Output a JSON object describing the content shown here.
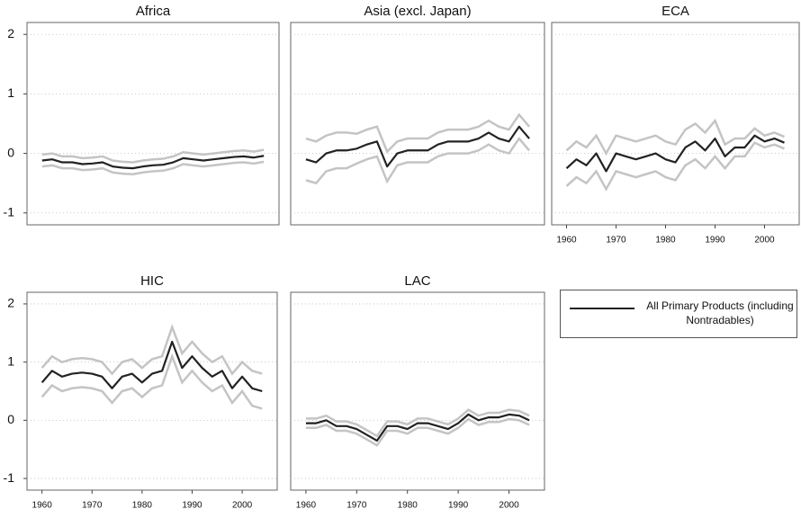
{
  "chart_data": [
    {
      "type": "line",
      "title": "Africa",
      "xlim": [
        1957,
        2007
      ],
      "ylim": [
        -1.2,
        2.2
      ],
      "xticks": [
        1960,
        1970,
        1980,
        1990,
        2000
      ],
      "yticks": [
        -1,
        0,
        1,
        2
      ],
      "grid": true,
      "show_xticklabels": false,
      "show_yticklabels": true,
      "legend": "right",
      "x": [
        1960,
        1962,
        1964,
        1966,
        1968,
        1970,
        1972,
        1974,
        1976,
        1978,
        1980,
        1982,
        1984,
        1986,
        1988,
        1990,
        1992,
        1994,
        1996,
        1998,
        2000,
        2002,
        2004
      ],
      "series": [
        {
          "name": "All Primary Products (including Nontradables)",
          "color": "#222222",
          "band_color": "#c4c4c4",
          "values": [
            -0.12,
            -0.1,
            -0.15,
            -0.15,
            -0.18,
            -0.17,
            -0.15,
            -0.22,
            -0.24,
            -0.25,
            -0.22,
            -0.2,
            -0.19,
            -0.15,
            -0.08,
            -0.1,
            -0.12,
            -0.1,
            -0.08,
            -0.06,
            -0.05,
            -0.07,
            -0.04
          ],
          "errors": [
            0.1,
            0.1,
            0.1,
            0.1,
            0.1,
            0.1,
            0.1,
            0.1,
            0.1,
            0.1,
            0.1,
            0.1,
            0.1,
            0.1,
            0.1,
            0.1,
            0.1,
            0.1,
            0.1,
            0.1,
            0.1,
            0.1,
            0.1
          ]
        }
      ]
    },
    {
      "type": "line",
      "title": "Asia (excl. Japan)",
      "xlim": [
        1957,
        2007
      ],
      "ylim": [
        -1.2,
        2.2
      ],
      "xticks": [
        1960,
        1970,
        1980,
        1990,
        2000
      ],
      "yticks": [
        -1,
        0,
        1,
        2
      ],
      "grid": true,
      "show_xticklabels": false,
      "show_yticklabels": false,
      "x": [
        1960,
        1962,
        1964,
        1966,
        1968,
        1970,
        1972,
        1974,
        1976,
        1978,
        1980,
        1982,
        1984,
        1986,
        1988,
        1990,
        1992,
        1994,
        1996,
        1998,
        2000,
        2002,
        2004
      ],
      "series": [
        {
          "color": "#222222",
          "band_color": "#c4c4c4",
          "values": [
            -0.1,
            -0.15,
            0.0,
            0.05,
            0.05,
            0.08,
            0.15,
            0.2,
            -0.22,
            0.0,
            0.05,
            0.05,
            0.05,
            0.15,
            0.2,
            0.2,
            0.2,
            0.25,
            0.35,
            0.25,
            0.2,
            0.45,
            0.25
          ],
          "errors": [
            0.35,
            0.35,
            0.3,
            0.3,
            0.3,
            0.25,
            0.25,
            0.25,
            0.25,
            0.2,
            0.2,
            0.2,
            0.2,
            0.2,
            0.2,
            0.2,
            0.2,
            0.2,
            0.2,
            0.2,
            0.2,
            0.2,
            0.2
          ]
        }
      ]
    },
    {
      "type": "line",
      "title": "ECA",
      "xlim": [
        1957,
        2007
      ],
      "ylim": [
        -1.2,
        2.2
      ],
      "xticks": [
        1960,
        1970,
        1980,
        1990,
        2000
      ],
      "yticks": [
        -1,
        0,
        1,
        2
      ],
      "grid": true,
      "show_xticklabels": true,
      "show_yticklabels": false,
      "x": [
        1960,
        1962,
        1964,
        1966,
        1968,
        1970,
        1972,
        1974,
        1976,
        1978,
        1980,
        1982,
        1984,
        1986,
        1988,
        1990,
        1992,
        1994,
        1996,
        1998,
        2000,
        2002,
        2004
      ],
      "series": [
        {
          "color": "#222222",
          "band_color": "#c4c4c4",
          "values": [
            -0.25,
            -0.1,
            -0.2,
            0.0,
            -0.3,
            0.0,
            -0.05,
            -0.1,
            -0.05,
            0.0,
            -0.1,
            -0.15,
            0.1,
            0.2,
            0.05,
            0.25,
            -0.05,
            0.1,
            0.1,
            0.3,
            0.2,
            0.25,
            0.18
          ],
          "errors": [
            0.3,
            0.3,
            0.3,
            0.3,
            0.3,
            0.3,
            0.3,
            0.3,
            0.3,
            0.3,
            0.3,
            0.3,
            0.3,
            0.3,
            0.3,
            0.3,
            0.2,
            0.15,
            0.15,
            0.12,
            0.1,
            0.1,
            0.1
          ]
        }
      ]
    },
    {
      "type": "line",
      "title": "HIC",
      "xlim": [
        1957,
        2007
      ],
      "ylim": [
        -1.2,
        2.2
      ],
      "xticks": [
        1960,
        1970,
        1980,
        1990,
        2000
      ],
      "yticks": [
        -1,
        0,
        1,
        2
      ],
      "grid": true,
      "show_xticklabels": true,
      "show_yticklabels": true,
      "x": [
        1960,
        1962,
        1964,
        1966,
        1968,
        1970,
        1972,
        1974,
        1976,
        1978,
        1980,
        1982,
        1984,
        1986,
        1988,
        1990,
        1992,
        1994,
        1996,
        1998,
        2000,
        2002,
        2004
      ],
      "series": [
        {
          "color": "#222222",
          "band_color": "#c4c4c4",
          "values": [
            0.65,
            0.85,
            0.75,
            0.8,
            0.82,
            0.8,
            0.75,
            0.55,
            0.75,
            0.8,
            0.65,
            0.8,
            0.85,
            1.35,
            0.9,
            1.1,
            0.9,
            0.75,
            0.85,
            0.55,
            0.75,
            0.55,
            0.5
          ],
          "errors": [
            0.25,
            0.25,
            0.25,
            0.25,
            0.25,
            0.25,
            0.25,
            0.25,
            0.25,
            0.25,
            0.25,
            0.25,
            0.25,
            0.25,
            0.25,
            0.25,
            0.25,
            0.25,
            0.25,
            0.25,
            0.25,
            0.3,
            0.3
          ]
        }
      ]
    },
    {
      "type": "line",
      "title": "LAC",
      "xlim": [
        1957,
        2007
      ],
      "ylim": [
        -1.2,
        2.2
      ],
      "xticks": [
        1960,
        1970,
        1980,
        1990,
        2000
      ],
      "yticks": [
        -1,
        0,
        1,
        2
      ],
      "grid": true,
      "show_xticklabels": true,
      "show_yticklabels": false,
      "x": [
        1960,
        1962,
        1964,
        1966,
        1968,
        1970,
        1972,
        1974,
        1976,
        1978,
        1980,
        1982,
        1984,
        1986,
        1988,
        1990,
        1992,
        1994,
        1996,
        1998,
        2000,
        2002,
        2004
      ],
      "series": [
        {
          "color": "#222222",
          "band_color": "#c4c4c4",
          "values": [
            -0.05,
            -0.05,
            0.0,
            -0.1,
            -0.1,
            -0.15,
            -0.25,
            -0.35,
            -0.1,
            -0.1,
            -0.15,
            -0.05,
            -0.05,
            -0.1,
            -0.15,
            -0.05,
            0.1,
            0.0,
            0.05,
            0.05,
            0.1,
            0.08,
            0.0
          ],
          "errors": [
            0.08,
            0.08,
            0.08,
            0.08,
            0.08,
            0.08,
            0.08,
            0.08,
            0.08,
            0.08,
            0.08,
            0.08,
            0.08,
            0.08,
            0.08,
            0.08,
            0.08,
            0.08,
            0.08,
            0.08,
            0.08,
            0.08,
            0.08
          ]
        }
      ]
    }
  ]
}
